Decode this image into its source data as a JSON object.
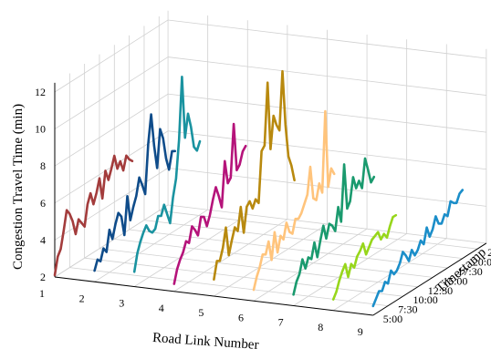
{
  "chart_data": {
    "type": "line",
    "projection": "3d-waterfall",
    "title": "",
    "xlabel": "Road Link Number",
    "ylabel": "Timestamp",
    "zlabel": "Congestion Travel Time (min)",
    "x_ticks": [
      "1",
      "2",
      "3",
      "4",
      "5",
      "6",
      "7",
      "8",
      "9"
    ],
    "y_ticks": [
      "5:00",
      "7:30",
      "10:00",
      "12:30",
      "15:00",
      "17:30",
      "20:00",
      "22:30"
    ],
    "z_ticks": [
      "2",
      "4",
      "6",
      "8",
      "10",
      "12"
    ],
    "xlim": [
      1,
      9
    ],
    "ylim_hours": [
      5,
      24
    ],
    "zlim": [
      2,
      12.5
    ],
    "grid": true,
    "legend": "none",
    "series": [
      {
        "link": 1,
        "color": "#a33c3c",
        "hours": [
          5.0,
          5.5,
          6.0,
          6.5,
          7.0,
          7.5,
          8.0,
          8.5,
          9.0,
          9.5,
          10.0,
          10.5,
          11.0,
          11.5,
          12.0,
          12.5,
          13.0,
          13.5,
          14.0,
          14.5,
          15.0,
          15.5,
          16.0,
          16.5,
          17.0,
          17.5,
          18.0
        ],
        "values": [
          2.1,
          3.0,
          3.3,
          4.2,
          5.2,
          4.9,
          4.4,
          3.6,
          4.3,
          4.0,
          3.7,
          4.8,
          5.3,
          4.6,
          5.1,
          5.8,
          4.6,
          6.0,
          5.4,
          5.9,
          6.5,
          5.7,
          6.0,
          5.4,
          6.1,
          5.8,
          5.6
        ]
      },
      {
        "link": 2,
        "color": "#0f4c8a",
        "hours": [
          5.0,
          5.5,
          6.0,
          6.5,
          7.0,
          7.5,
          8.0,
          8.5,
          9.0,
          9.5,
          10.0,
          10.5,
          11.0,
          11.5,
          12.0,
          12.5,
          13.0,
          13.5,
          14.0,
          14.5,
          15.0,
          15.5,
          16.0,
          16.5,
          17.0,
          17.5,
          18.0,
          18.5
        ],
        "values": [
          2.6,
          3.1,
          2.9,
          3.5,
          3.2,
          4.3,
          3.7,
          4.4,
          4.9,
          4.6,
          3.5,
          5.5,
          4.1,
          4.7,
          5.2,
          6.1,
          5.6,
          5.0,
          7.6,
          9.1,
          7.3,
          6.0,
          8.0,
          7.4,
          6.2,
          5.5,
          6.4,
          6.3
        ]
      },
      {
        "link": 3,
        "color": "#1a93a0",
        "hours": [
          5.0,
          5.5,
          6.0,
          6.5,
          7.0,
          7.5,
          8.0,
          8.5,
          9.0,
          9.5,
          10.0,
          10.5,
          11.0,
          11.5,
          12.0,
          12.5,
          13.0,
          13.5,
          14.0,
          14.5,
          15.0,
          15.5,
          16.0
        ],
        "values": [
          2.8,
          3.7,
          4.2,
          4.6,
          4.9,
          4.5,
          4.3,
          4.4,
          5.0,
          4.9,
          5.4,
          4.8,
          4.2,
          5.5,
          6.4,
          8.4,
          11.7,
          8.3,
          9.5,
          8.7,
          7.5,
          7.2,
          7.6
        ]
      },
      {
        "link": 4,
        "color": "#b5137a",
        "hours": [
          5.0,
          5.5,
          6.0,
          6.5,
          7.0,
          7.5,
          8.0,
          8.5,
          9.0,
          9.5,
          10.0,
          10.5,
          11.0,
          11.5,
          12.0,
          12.5,
          13.0,
          13.5,
          14.0,
          14.5,
          15.0,
          15.5,
          16.0,
          16.5,
          17.0
        ],
        "values": [
          2.4,
          3.1,
          3.5,
          3.8,
          4.3,
          4.1,
          4.9,
          4.6,
          4.2,
          5.1,
          5.0,
          4.4,
          4.9,
          5.6,
          6.2,
          5.6,
          4.9,
          7.3,
          6.0,
          6.2,
          9.0,
          6.4,
          6.6,
          7.2,
          7.4
        ]
      },
      {
        "link": 5,
        "color": "#b8890e",
        "hours": [
          5.0,
          5.5,
          6.0,
          6.5,
          7.0,
          7.5,
          8.0,
          8.5,
          9.0,
          9.5,
          10.0,
          10.5,
          11.0,
          11.5,
          12.0,
          12.5,
          13.0,
          13.5,
          14.0,
          14.5,
          15.0,
          15.5,
          16.0,
          16.5,
          17.0,
          17.5,
          18.0,
          18.5
        ],
        "values": [
          2.9,
          3.8,
          3.7,
          4.3,
          5.3,
          3.7,
          4.4,
          5.0,
          4.7,
          5.9,
          4.4,
          5.7,
          5.9,
          5.4,
          5.8,
          5.5,
          8.2,
          8.4,
          11.7,
          8.0,
          9.7,
          9.1,
          8.7,
          11.8,
          8.8,
          7.0,
          6.4,
          5.5
        ]
      },
      {
        "link": 6,
        "color": "#ffc47c",
        "hours": [
          5.0,
          5.5,
          6.0,
          6.5,
          7.0,
          7.5,
          8.0,
          8.5,
          9.0,
          9.5,
          10.0,
          10.5,
          11.0,
          11.5,
          12.0,
          12.5,
          13.0,
          13.5,
          14.0,
          14.5,
          15.0,
          15.5,
          16.0,
          16.5,
          17.0,
          17.5,
          18.0,
          18.5
        ],
        "values": [
          2.6,
          3.2,
          3.6,
          4.2,
          4.1,
          4.7,
          3.6,
          5.0,
          3.8,
          4.6,
          4.3,
          5.1,
          4.5,
          4.3,
          5.0,
          4.9,
          5.1,
          5.5,
          5.9,
          7.3,
          5.5,
          5.3,
          6.1,
          5.5,
          9.8,
          5.6,
          6.5,
          6.1
        ]
      },
      {
        "link": 7,
        "color": "#1a9a6e",
        "hours": [
          5.0,
          5.5,
          6.0,
          6.5,
          7.0,
          7.5,
          8.0,
          8.5,
          9.0,
          9.5,
          10.0,
          10.5,
          11.0,
          11.5,
          12.0,
          12.5,
          13.0,
          13.5,
          14.0,
          14.5,
          15.0,
          15.5,
          16.0,
          16.5,
          17.0,
          17.5,
          18.0,
          18.5
        ],
        "values": [
          2.6,
          3.2,
          3.5,
          4.2,
          3.6,
          4.1,
          3.9,
          4.7,
          3.8,
          4.6,
          5.3,
          4.5,
          5.2,
          5.0,
          4.6,
          5.8,
          4.9,
          7.9,
          5.4,
          5.7,
          6.9,
          6.2,
          6.5,
          6.0,
          7.5,
          6.8,
          6.0,
          6.2
        ]
      },
      {
        "link": 8,
        "color": "#97d61b",
        "hours": [
          5.0,
          5.5,
          6.0,
          6.5,
          7.0,
          7.5,
          8.0,
          8.5,
          9.0,
          9.5,
          10.0,
          10.5,
          11.0,
          11.5,
          12.0,
          12.5,
          13.0,
          13.5,
          14.0,
          14.5,
          15.0,
          15.5
        ],
        "values": [
          2.6,
          2.9,
          3.4,
          3.8,
          4.1,
          3.3,
          3.9,
          3.6,
          4.1,
          4.3,
          4.6,
          3.9,
          4.2,
          4.5,
          4.6,
          4.7,
          4.2,
          4.4,
          4.1,
          4.6,
          5.0,
          5.0
        ]
      },
      {
        "link": 9,
        "color": "#1b8ec9",
        "hours": [
          5.0,
          5.5,
          6.0,
          6.5,
          7.0,
          7.5,
          8.0,
          8.5,
          9.0,
          9.5,
          10.0,
          10.5,
          11.0,
          11.5,
          12.0,
          12.5,
          13.0,
          13.5,
          14.0,
          14.5,
          15.0,
          15.5,
          16.0,
          16.5,
          17.0,
          17.5,
          18.0,
          18.5,
          19.0,
          19.5,
          20.0
        ],
        "values": [
          2.5,
          2.8,
          3.1,
          3.0,
          3.4,
          3.2,
          3.8,
          3.5,
          3.6,
          3.9,
          4.4,
          4.1,
          3.7,
          4.2,
          3.8,
          4.0,
          4.4,
          4.1,
          4.9,
          4.3,
          4.6,
          5.2,
          4.7,
          4.6,
          5.0,
          4.8,
          5.5,
          5.3,
          5.2,
          5.6,
          5.7
        ]
      }
    ]
  }
}
